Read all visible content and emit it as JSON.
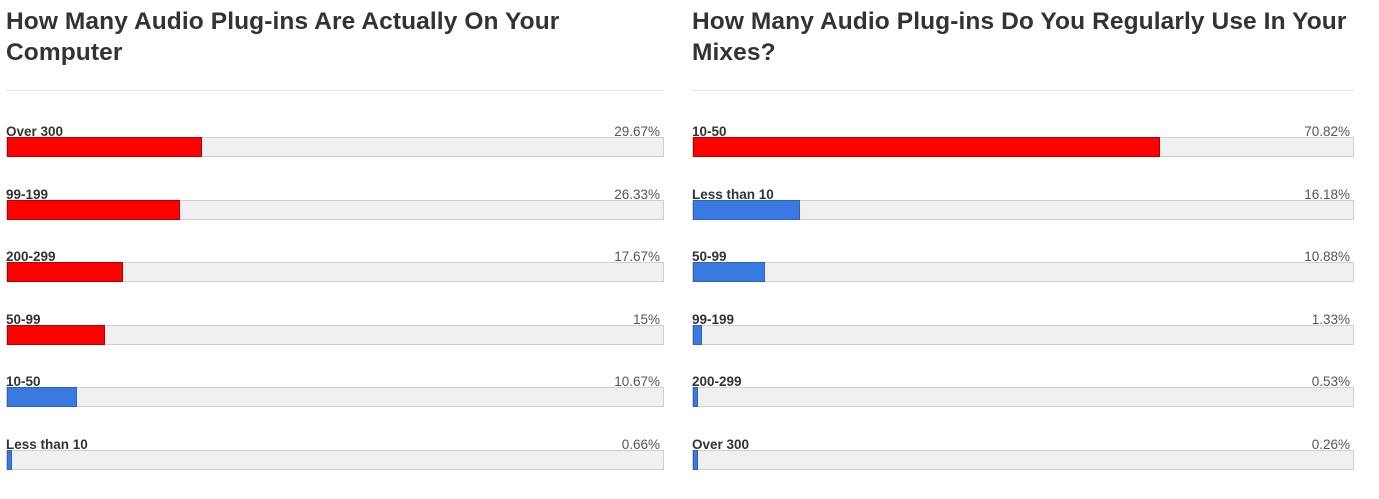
{
  "chart_data": [
    {
      "type": "bar",
      "title": "How Many Audio Plug-ins Are Actually On Your Computer",
      "categories": [
        "Over 300",
        "99-199",
        "200-299",
        "50-99",
        "10-50",
        "Less than 10"
      ],
      "values": [
        29.67,
        26.33,
        17.67,
        15,
        10.67,
        0.66
      ],
      "labels": [
        "29.67%",
        "26.33%",
        "17.67%",
        "15%",
        "10.67%",
        "0.66%"
      ],
      "colors": [
        "#ff0000",
        "#ff0000",
        "#ff0000",
        "#ff0000",
        "#3a7ae0",
        "#3a7ae0"
      ],
      "xlim": [
        0,
        100
      ],
      "orientation": "horizontal"
    },
    {
      "type": "bar",
      "title": "How Many Audio Plug-ins Do You Regularly Use In Your Mixes?",
      "categories": [
        "10-50",
        "Less than 10",
        "50-99",
        "99-199",
        "200-299",
        "Over 300"
      ],
      "values": [
        70.82,
        16.18,
        10.88,
        1.33,
        0.53,
        0.26
      ],
      "labels": [
        "70.82%",
        "16.18%",
        "10.88%",
        "1.33%",
        "0.53%",
        "0.26%"
      ],
      "colors": [
        "#ff0000",
        "#3a7ae0",
        "#3a7ae0",
        "#3a7ae0",
        "#3a7ae0",
        "#3a7ae0"
      ],
      "xlim": [
        0,
        100
      ],
      "orientation": "horizontal"
    }
  ]
}
